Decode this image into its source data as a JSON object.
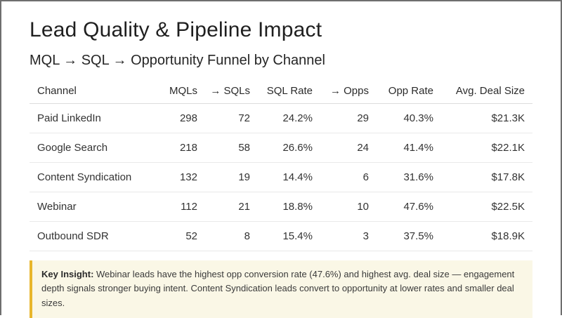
{
  "slide": {
    "title": "Lead Quality & Pipeline Impact",
    "subtitle": "MQL → SQL → Opportunity Funnel by Channel"
  },
  "table": {
    "columns": [
      "Channel",
      "MQLs",
      "→ SQLs",
      "SQL Rate",
      "→ Opps",
      "Opp Rate",
      "Avg. Deal Size"
    ],
    "rows": [
      [
        "Paid LinkedIn",
        "298",
        "72",
        "24.2%",
        "29",
        "40.3%",
        "$21.3K"
      ],
      [
        "Google Search",
        "218",
        "58",
        "26.6%",
        "24",
        "41.4%",
        "$22.1K"
      ],
      [
        "Content Syndication",
        "132",
        "19",
        "14.4%",
        "6",
        "31.6%",
        "$17.8K"
      ],
      [
        "Webinar",
        "112",
        "21",
        "18.8%",
        "10",
        "47.6%",
        "$22.5K"
      ],
      [
        "Outbound SDR",
        "52",
        "8",
        "15.4%",
        "3",
        "37.5%",
        "$18.9K"
      ]
    ]
  },
  "insight": {
    "label": "Key Insight:",
    "text": " Webinar leads have the highest opp conversion rate (47.6%) and highest avg. deal size — engagement depth signals stronger buying intent. Content Syndication leads convert to opportunity at lower rates and smaller deal sizes."
  },
  "colors": {
    "insight_background": "#FAF7E6",
    "insight_accent": "#E8B62C",
    "title_text": "#1F1F1F",
    "body_text": "#333333",
    "frame_border": "#6F6F6F"
  }
}
